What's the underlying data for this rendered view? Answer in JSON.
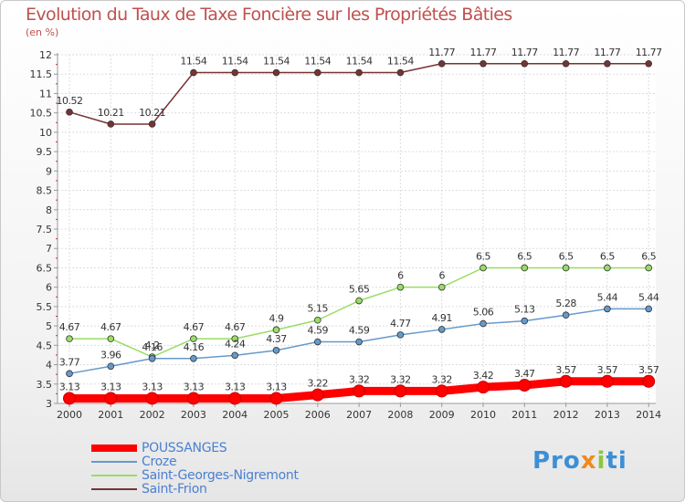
{
  "chart_data": {
    "type": "line",
    "title": "Evolution du Taux de Taxe Foncière sur les Propriétés Bâties",
    "ylabel": "(en %)",
    "xlabel": "",
    "ylim": [
      3,
      12
    ],
    "yticks": [
      "3",
      "3.5",
      "4",
      "4.5",
      "5",
      "5.5",
      "6",
      "6.5",
      "7",
      "7.5",
      "8",
      "8.5",
      "9",
      "9.5",
      "10",
      "10.5",
      "11",
      "11.5",
      "12"
    ],
    "categories": [
      "2000",
      "2001",
      "2002",
      "2003",
      "2004",
      "2005",
      "2006",
      "2007",
      "2008",
      "2009",
      "2010",
      "2011",
      "2012",
      "2013",
      "2014"
    ],
    "series": [
      {
        "name": "POUSSANGES",
        "color": "#ff0000",
        "values": [
          3.13,
          3.13,
          3.13,
          3.13,
          3.13,
          3.13,
          3.22,
          3.32,
          3.32,
          3.32,
          3.42,
          3.47,
          3.57,
          3.57,
          3.57
        ],
        "labels": [
          "3.13",
          "3.13",
          "3.13",
          "3.13",
          "3.13",
          "3.13",
          "3.22",
          "3.32",
          "3.32",
          "3.32",
          "3.42",
          "3.47",
          "3.57",
          "3.57",
          "3.57"
        ]
      },
      {
        "name": "Croze",
        "color": "#6699cc",
        "values": [
          3.77,
          3.96,
          4.16,
          4.16,
          4.24,
          4.37,
          4.59,
          4.59,
          4.77,
          4.91,
          5.06,
          5.13,
          5.28,
          5.44,
          5.44
        ],
        "labels": [
          "3.77",
          "3.96",
          "4.16",
          "4.16",
          "4.24",
          "4.37",
          "4.59",
          "4.59",
          "4.77",
          "4.91",
          "5.06",
          "5.13",
          "5.28",
          "5.44",
          "5.44"
        ]
      },
      {
        "name": "Saint-Georges-Nigremont",
        "color": "#99dd66",
        "values": [
          4.67,
          4.67,
          4.2,
          4.67,
          4.67,
          4.9,
          5.15,
          5.65,
          6,
          6,
          6.5,
          6.5,
          6.5,
          6.5,
          6.5
        ],
        "labels": [
          "4.67",
          "4.67",
          "4.2",
          "4.67",
          "4.67",
          "4.9",
          "5.15",
          "5.65",
          "6",
          "6",
          "6.5",
          "6.5",
          "6.5",
          "6.5",
          "6.5"
        ]
      },
      {
        "name": "Saint-Frion",
        "color": "#773333",
        "values": [
          10.52,
          10.21,
          10.21,
          11.54,
          11.54,
          11.54,
          11.54,
          11.54,
          11.54,
          11.77,
          11.77,
          11.77,
          11.77,
          11.77,
          11.77
        ],
        "labels": [
          "10.52",
          "10.21",
          "10.21",
          "11.54",
          "11.54",
          "11.54",
          "11.54",
          "11.54",
          "11.54",
          "11.77",
          "11.77",
          "11.77",
          "11.77",
          "11.77",
          "11.77"
        ]
      }
    ],
    "grid": true,
    "legend": "bottom-left"
  },
  "brand": {
    "logo_letters": [
      "Pro",
      "x",
      "i",
      "ti"
    ]
  }
}
